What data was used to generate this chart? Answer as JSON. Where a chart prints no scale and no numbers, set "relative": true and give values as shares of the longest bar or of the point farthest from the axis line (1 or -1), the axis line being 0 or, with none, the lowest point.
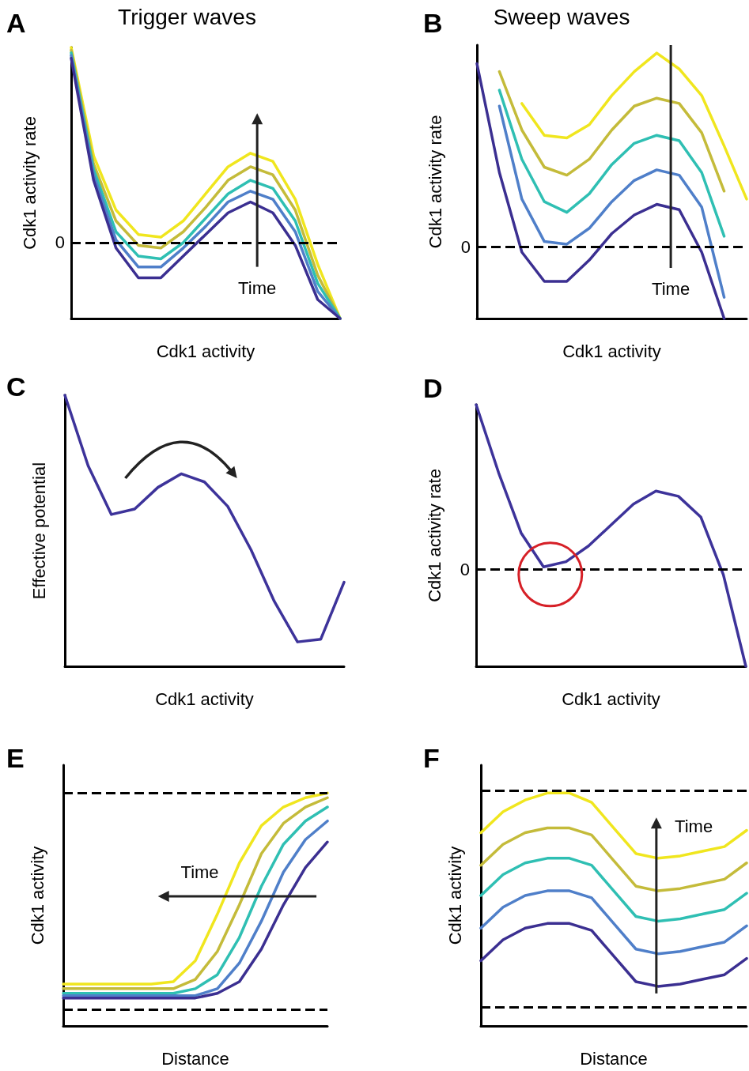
{
  "chart_data": [
    {
      "type": "line",
      "title": "Trigger waves",
      "xlabel": "Cdk1 activity",
      "ylabel": "Cdk1 activity rate",
      "relative": true,
      "marker": "none",
      "line_style": "solid",
      "annotations": [
        "A",
        "Time"
      ],
      "categories": [
        null,
        null,
        null,
        null,
        null,
        null,
        null,
        null,
        null,
        null,
        null,
        null,
        null
      ],
      "ref_lines": [
        {
          "axis": "y",
          "value": 0.28,
          "label": "0",
          "line_style": "dashed",
          "color": "#000000"
        }
      ],
      "series": [
        {
          "color": "#f0e61e",
          "values": [
            1.0,
            0.6,
            0.4,
            0.31,
            0.3,
            0.36,
            0.46,
            0.56,
            0.61,
            0.58,
            0.44,
            0.2,
            0
          ]
        },
        {
          "color": "#c4bb3a",
          "values": [
            0.99,
            0.57,
            0.36,
            0.27,
            0.26,
            0.32,
            0.41,
            0.51,
            0.56,
            0.53,
            0.4,
            0.16,
            0
          ]
        },
        {
          "color": "#2fbfb3",
          "values": [
            0.98,
            0.55,
            0.32,
            0.23,
            0.22,
            0.28,
            0.37,
            0.46,
            0.51,
            0.48,
            0.36,
            0.13,
            0
          ]
        },
        {
          "color": "#4f7fc9",
          "values": [
            0.97,
            0.53,
            0.29,
            0.19,
            0.19,
            0.26,
            0.34,
            0.43,
            0.47,
            0.44,
            0.32,
            0.1,
            0
          ]
        },
        {
          "color": "#3b2f91",
          "values": [
            0.96,
            0.51,
            0.26,
            0.15,
            0.15,
            0.23,
            0.31,
            0.39,
            0.43,
            0.39,
            0.27,
            0.07,
            0
          ]
        }
      ]
    },
    {
      "type": "line",
      "title": "Sweep waves",
      "xlabel": "Cdk1 activity",
      "ylabel": "Cdk1 activity rate",
      "relative": true,
      "marker": "none",
      "line_style": "solid",
      "annotations": [
        "B",
        "Time"
      ],
      "categories": [
        null,
        null,
        null,
        null,
        null,
        null,
        null,
        null,
        null,
        null,
        null,
        null,
        null
      ],
      "ref_lines": [
        {
          "axis": "y",
          "value": 0.27,
          "label": "0",
          "line_style": "dashed",
          "color": "#000000"
        }
      ],
      "series": [
        {
          "color": "#f0e61e",
          "values": [
            null,
            null,
            0.81,
            0.69,
            0.68,
            0.73,
            0.84,
            0.93,
            1.0,
            0.94,
            0.84,
            0.65,
            0.45
          ]
        },
        {
          "color": "#c4bb3a",
          "values": [
            null,
            0.93,
            0.71,
            0.57,
            0.54,
            0.6,
            0.71,
            0.8,
            0.83,
            0.81,
            0.7,
            0.48,
            null
          ]
        },
        {
          "color": "#2fbfb3",
          "values": [
            null,
            0.86,
            0.6,
            0.44,
            0.4,
            0.47,
            0.58,
            0.66,
            0.69,
            0.67,
            0.55,
            0.31,
            null
          ]
        },
        {
          "color": "#4f7fc9",
          "values": [
            null,
            0.8,
            0.45,
            0.29,
            0.28,
            0.34,
            0.44,
            0.52,
            0.56,
            0.54,
            0.42,
            0.08,
            null
          ]
        },
        {
          "color": "#3b2f91",
          "values": [
            0.96,
            0.55,
            0.25,
            0.14,
            0.14,
            0.22,
            0.32,
            0.39,
            0.43,
            0.41,
            0.25,
            0,
            null
          ]
        }
      ]
    },
    {
      "type": "line",
      "xlabel": "Cdk1 activity",
      "ylabel": "Effective potential",
      "relative": true,
      "marker": "none",
      "line_style": "solid",
      "annotations": [
        "C"
      ],
      "categories": [
        null,
        null,
        null,
        null,
        null,
        null,
        null,
        null,
        null,
        null,
        null,
        null,
        null
      ],
      "series": [
        {
          "color": "#3d339a",
          "values": [
            1.0,
            0.74,
            0.56,
            0.58,
            0.66,
            0.71,
            0.68,
            0.59,
            0.43,
            0.24,
            0.09,
            0.1,
            0.31
          ]
        }
      ]
    },
    {
      "type": "line",
      "xlabel": "Cdk1 activity",
      "ylabel": "Cdk1 activity rate",
      "relative": true,
      "marker": "none",
      "line_style": "solid",
      "annotations": [
        "D"
      ],
      "categories": [
        null,
        null,
        null,
        null,
        null,
        null,
        null,
        null,
        null,
        null,
        null,
        null,
        null
      ],
      "ref_lines": [
        {
          "axis": "y",
          "value": 0.37,
          "label": "0",
          "line_style": "dashed",
          "color": "#000000"
        }
      ],
      "series": [
        {
          "color": "#3d339a",
          "values": [
            1.0,
            0.74,
            0.51,
            0.38,
            0.4,
            0.46,
            0.54,
            0.62,
            0.67,
            0.65,
            0.57,
            0.35,
            0
          ]
        }
      ]
    },
    {
      "type": "line",
      "xlabel": "Distance",
      "ylabel": "Cdk1 activity",
      "relative": true,
      "marker": "none",
      "line_style": "solid",
      "annotations": [
        "E",
        "Time"
      ],
      "categories": [
        null,
        null,
        null,
        null,
        null,
        null,
        null,
        null,
        null,
        null,
        null,
        null,
        null
      ],
      "ref_lines": [
        {
          "axis": "y",
          "value": 1.0,
          "line_style": "dashed",
          "color": "#000000"
        },
        {
          "axis": "y",
          "value": 0.07,
          "line_style": "dashed",
          "color": "#000000"
        }
      ],
      "series": [
        {
          "color": "#f0e61e",
          "values": [
            0.18,
            0.18,
            0.18,
            0.18,
            0.18,
            0.19,
            0.28,
            0.48,
            0.7,
            0.86,
            0.94,
            0.98,
            1.0
          ]
        },
        {
          "color": "#c4bb3a",
          "values": [
            0.16,
            0.16,
            0.16,
            0.16,
            0.16,
            0.16,
            0.2,
            0.32,
            0.52,
            0.74,
            0.87,
            0.94,
            0.98
          ]
        },
        {
          "color": "#2fbfb3",
          "values": [
            0.14,
            0.14,
            0.14,
            0.14,
            0.14,
            0.14,
            0.16,
            0.22,
            0.38,
            0.6,
            0.78,
            0.88,
            0.94
          ]
        },
        {
          "color": "#4f7fc9",
          "values": [
            0.13,
            0.13,
            0.13,
            0.13,
            0.13,
            0.13,
            0.13,
            0.16,
            0.27,
            0.45,
            0.66,
            0.8,
            0.88
          ]
        },
        {
          "color": "#3b2f91",
          "values": [
            0.12,
            0.12,
            0.12,
            0.12,
            0.12,
            0.12,
            0.12,
            0.14,
            0.19,
            0.33,
            0.52,
            0.68,
            0.79
          ]
        }
      ]
    },
    {
      "type": "line",
      "xlabel": "Distance",
      "ylabel": "Cdk1 activity",
      "relative": true,
      "marker": "none",
      "line_style": "solid",
      "annotations": [
        "F",
        "Time"
      ],
      "categories": [
        null,
        null,
        null,
        null,
        null,
        null,
        null,
        null,
        null,
        null,
        null,
        null,
        null
      ],
      "ref_lines": [
        {
          "axis": "y",
          "value": 1.01,
          "line_style": "dashed",
          "color": "#000000"
        },
        {
          "axis": "y",
          "value": 0.08,
          "line_style": "dashed",
          "color": "#000000"
        }
      ],
      "series": [
        {
          "color": "#f0e61e",
          "values": [
            0.83,
            0.92,
            0.97,
            1.0,
            1.0,
            0.96,
            0.85,
            0.74,
            0.72,
            0.73,
            0.75,
            0.77,
            0.84
          ]
        },
        {
          "color": "#c4bb3a",
          "values": [
            0.69,
            0.78,
            0.83,
            0.85,
            0.85,
            0.82,
            0.71,
            0.6,
            0.58,
            0.59,
            0.61,
            0.63,
            0.7
          ]
        },
        {
          "color": "#2fbfb3",
          "values": [
            0.56,
            0.65,
            0.7,
            0.72,
            0.72,
            0.69,
            0.58,
            0.47,
            0.45,
            0.46,
            0.48,
            0.5,
            0.57
          ]
        },
        {
          "color": "#4f7fc9",
          "values": [
            0.42,
            0.51,
            0.56,
            0.58,
            0.58,
            0.55,
            0.44,
            0.33,
            0.31,
            0.32,
            0.34,
            0.36,
            0.43
          ]
        },
        {
          "color": "#3b2f91",
          "values": [
            0.28,
            0.37,
            0.42,
            0.44,
            0.44,
            0.41,
            0.3,
            0.19,
            0.17,
            0.18,
            0.2,
            0.22,
            0.29
          ]
        }
      ]
    }
  ]
}
